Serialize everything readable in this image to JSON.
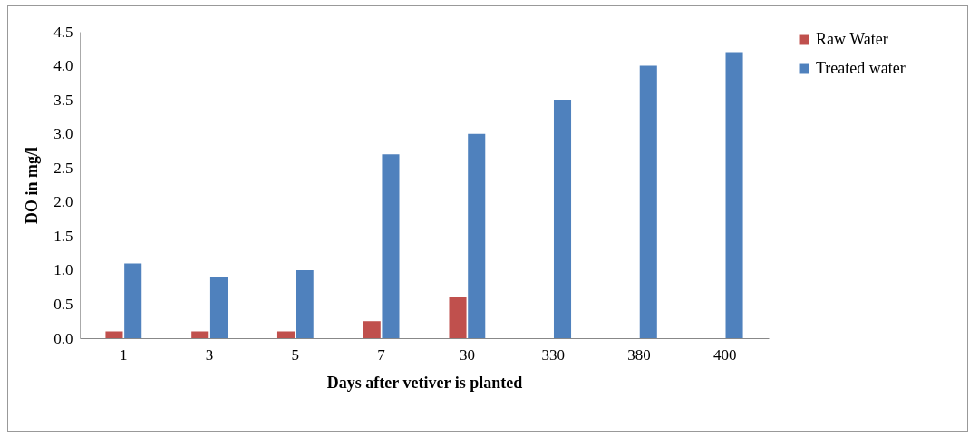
{
  "chart_data": {
    "type": "bar",
    "xlabel": "Days after vetiver is planted",
    "ylabel": "DO in mg/l",
    "categories": [
      "1",
      "3",
      "5",
      "7",
      "30",
      "330",
      "380",
      "400"
    ],
    "series": [
      {
        "name": "Raw Water",
        "color": "#c0504d",
        "values": [
          0.1,
          0.1,
          0.1,
          0.25,
          0.6,
          null,
          null,
          null
        ]
      },
      {
        "name": "Treated water",
        "color": "#4f81bd",
        "values": [
          1.1,
          0.9,
          1.0,
          2.7,
          3.0,
          3.5,
          4.0,
          4.2
        ]
      }
    ],
    "ylim": [
      0,
      4.5
    ],
    "yticks": [
      {
        "value": 0,
        "label": "0.0"
      },
      0.5,
      {
        "value": 1,
        "label": "1.0"
      },
      1.5,
      {
        "value": 2,
        "label": "2.0"
      },
      2.5,
      {
        "value": 3,
        "label": "3.0"
      },
      3.5,
      {
        "value": 4,
        "label": "4.0"
      },
      4.5
    ],
    "grid": false,
    "legend": "right"
  }
}
